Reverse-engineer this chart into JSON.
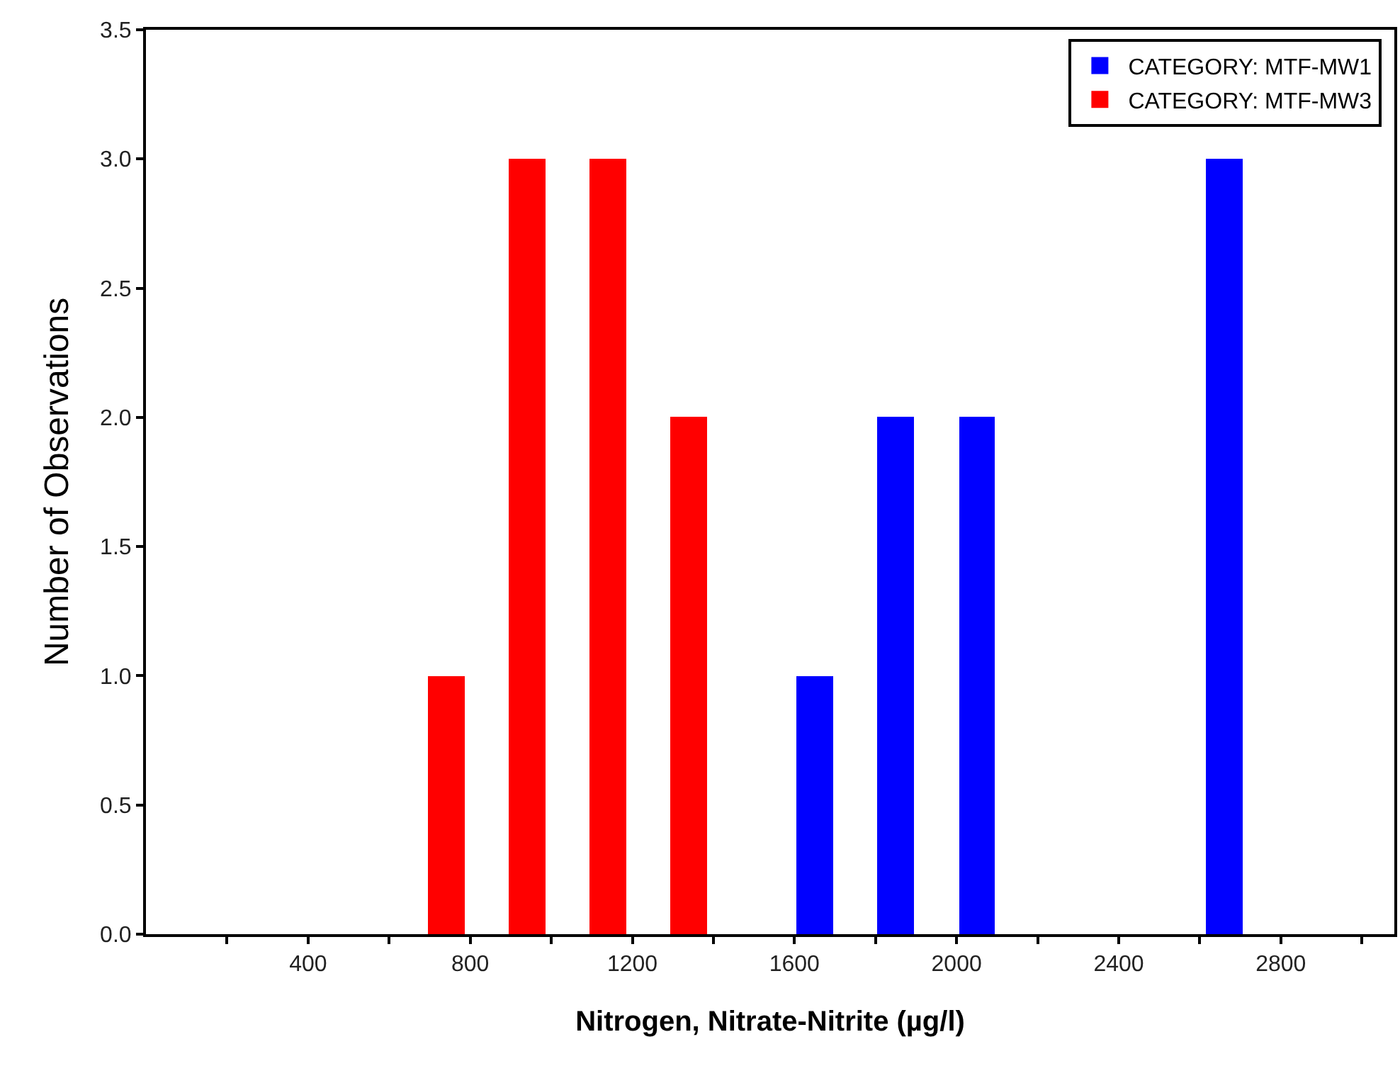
{
  "chart_data": {
    "type": "bar",
    "xlabel": "Nitrogen, Nitrate-Nitrite (µg/l)",
    "ylabel": "Number of Observations",
    "series": [
      {
        "name": "CATEGORY: MTF-MW1",
        "color": "#0000ff",
        "x": [
          1650,
          1850,
          2050,
          2660
        ],
        "values": [
          1,
          2,
          2,
          3
        ]
      },
      {
        "name": "CATEGORY: MTF-MW3",
        "color": "#ff0000",
        "x": [
          740,
          940,
          1140,
          1340
        ],
        "values": [
          1,
          3,
          3,
          2
        ]
      }
    ],
    "xlim": [
      0,
      3080
    ],
    "xticks": [
      {
        "value": 200,
        "label": null
      },
      400,
      {
        "value": 600,
        "label": null
      },
      800,
      {
        "value": 1000,
        "label": null
      },
      1200,
      {
        "value": 1400,
        "label": null
      },
      1600,
      {
        "value": 1800,
        "label": null
      },
      2000,
      {
        "value": 2200,
        "label": null
      },
      2400,
      {
        "value": 2600,
        "label": null
      },
      2800,
      {
        "value": 3000,
        "label": null
      }
    ],
    "ylim": [
      0,
      3.5
    ],
    "yticks": [
      {
        "value": 0,
        "label": "0.0"
      },
      0.5,
      {
        "value": 1,
        "label": "1.0"
      },
      1.5,
      {
        "value": 2,
        "label": "2.0"
      },
      2.5,
      {
        "value": 3,
        "label": "3.0"
      },
      3.5
    ],
    "legend": "top right"
  }
}
